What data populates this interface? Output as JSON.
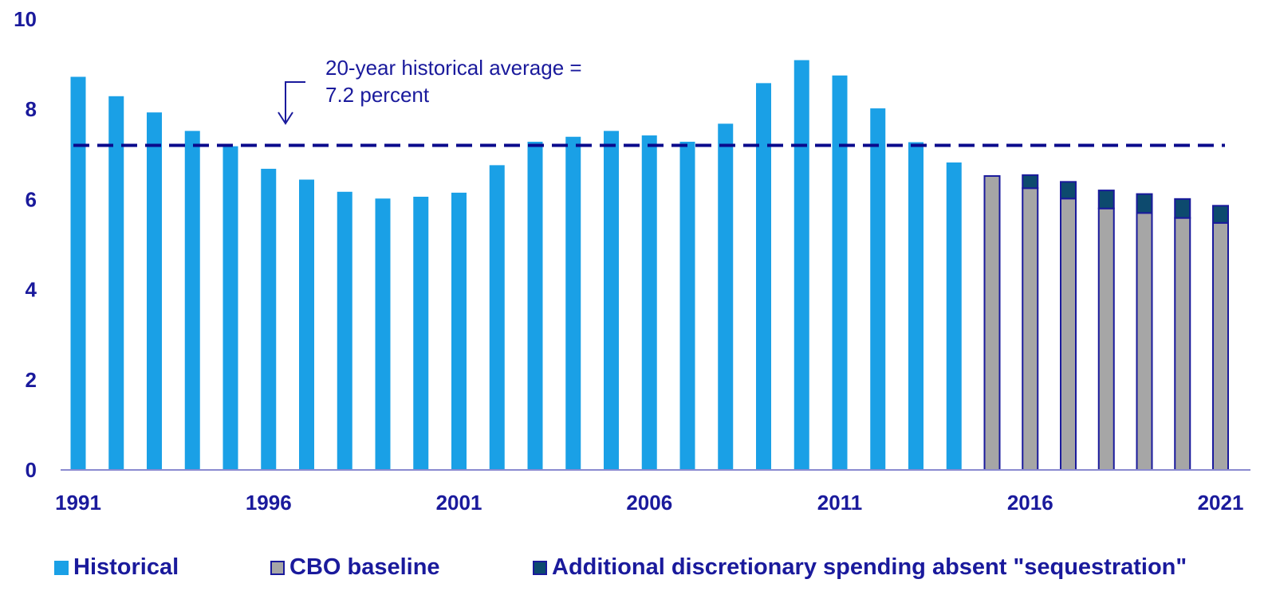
{
  "chart_data": {
    "type": "bar",
    "title": "",
    "xlabel": "",
    "ylabel": "",
    "ylim": [
      0,
      10
    ],
    "yticks": [
      "0",
      "2",
      "4",
      "6",
      "8",
      "10"
    ],
    "xtick_labels": [
      "1991",
      "1996",
      "2001",
      "2006",
      "2011",
      "2016",
      "2021"
    ],
    "years": [
      1991,
      1992,
      1993,
      1994,
      1995,
      1996,
      1997,
      1998,
      1999,
      2000,
      2001,
      2002,
      2003,
      2004,
      2005,
      2006,
      2007,
      2008,
      2009,
      2010,
      2011,
      2012,
      2013,
      2014,
      2015,
      2016,
      2017,
      2018,
      2019,
      2020,
      2021
    ],
    "series": [
      {
        "name": "Historical",
        "color": "#1aa0e6",
        "values": [
          8.72,
          8.29,
          7.93,
          7.52,
          7.18,
          6.68,
          6.44,
          6.17,
          6.02,
          6.06,
          6.15,
          6.76,
          7.28,
          7.39,
          7.52,
          7.42,
          7.28,
          7.68,
          8.58,
          9.09,
          8.75,
          8.02,
          7.27,
          6.82,
          null,
          null,
          null,
          null,
          null,
          null,
          null
        ]
      },
      {
        "name": "CBO baseline",
        "color": "#a6a6a6",
        "values": [
          null,
          null,
          null,
          null,
          null,
          null,
          null,
          null,
          null,
          null,
          null,
          null,
          null,
          null,
          null,
          null,
          null,
          null,
          null,
          null,
          null,
          null,
          null,
          null,
          6.52,
          6.25,
          6.02,
          5.8,
          5.7,
          5.59,
          5.48
        ]
      },
      {
        "name": "Additional discretionary spending absent \"sequestration\"",
        "color": "#0d4a6e",
        "values": [
          null,
          null,
          null,
          null,
          null,
          null,
          null,
          null,
          null,
          null,
          null,
          null,
          null,
          null,
          null,
          null,
          null,
          null,
          null,
          null,
          null,
          null,
          null,
          null,
          0,
          0.29,
          0.37,
          0.4,
          0.42,
          0.42,
          0.38
        ]
      }
    ],
    "reference_line": {
      "value": 7.2,
      "style": "dashed",
      "color": "#0a0a8c"
    },
    "annotation": {
      "lines": [
        "20-year historical average =",
        "7.2 percent"
      ]
    },
    "legend_position": "bottom",
    "grid": false
  }
}
